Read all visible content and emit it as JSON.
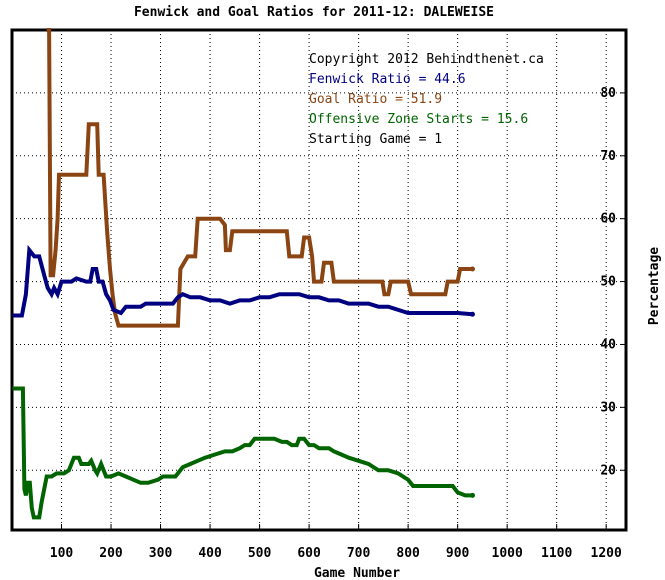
{
  "chart_data": {
    "type": "line",
    "title": "Fenwick and Goal Ratios for 2011-12: DALEWEISE",
    "xlabel": "Game Number",
    "ylabel": "Percentage",
    "xlim": [
      0,
      1240
    ],
    "ylim": [
      10.5,
      90
    ],
    "x_ticks": [
      100,
      200,
      300,
      400,
      500,
      600,
      700,
      800,
      900,
      1000,
      1100,
      1200
    ],
    "y_ticks": [
      20,
      30,
      40,
      50,
      60,
      70,
      80
    ],
    "grid": true,
    "legend": [
      {
        "text": "Copyright 2012 Behindthenet.ca",
        "color": "#000000"
      },
      {
        "text": "Fenwick Ratio = 44.6",
        "color": "#000080"
      },
      {
        "text": "Goal Ratio = 51.9",
        "color": "#8B4513"
      },
      {
        "text": "Offensive Zone Starts = 15.6",
        "color": "#006400"
      },
      {
        "text": "Starting Game = 1",
        "color": "#000000"
      }
    ],
    "series": [
      {
        "color": "#000080",
        "points": [
          [
            1,
            44.6
          ],
          [
            20,
            44.6
          ],
          [
            28,
            48
          ],
          [
            35,
            55
          ],
          [
            45,
            54
          ],
          [
            55,
            54
          ],
          [
            65,
            51
          ],
          [
            72,
            49
          ],
          [
            80,
            48
          ],
          [
            85,
            49
          ],
          [
            92,
            48
          ],
          [
            100,
            50
          ],
          [
            110,
            50
          ],
          [
            120,
            50
          ],
          [
            130,
            50.5
          ],
          [
            150,
            50
          ],
          [
            158,
            50
          ],
          [
            163,
            52
          ],
          [
            170,
            52
          ],
          [
            175,
            50
          ],
          [
            183,
            50
          ],
          [
            190,
            48
          ],
          [
            198,
            47
          ],
          [
            205,
            45.5
          ],
          [
            220,
            45
          ],
          [
            230,
            46
          ],
          [
            260,
            46
          ],
          [
            270,
            46.5
          ],
          [
            300,
            46.5
          ],
          [
            325,
            46.5
          ],
          [
            335,
            47.5
          ],
          [
            345,
            48
          ],
          [
            360,
            47.5
          ],
          [
            380,
            47.5
          ],
          [
            400,
            47
          ],
          [
            420,
            47
          ],
          [
            440,
            46.5
          ],
          [
            460,
            47
          ],
          [
            480,
            47
          ],
          [
            500,
            47.5
          ],
          [
            520,
            47.5
          ],
          [
            540,
            48
          ],
          [
            560,
            48
          ],
          [
            580,
            48
          ],
          [
            600,
            47.5
          ],
          [
            620,
            47.5
          ],
          [
            640,
            47
          ],
          [
            660,
            47
          ],
          [
            680,
            46.5
          ],
          [
            700,
            46.5
          ],
          [
            720,
            46.5
          ],
          [
            740,
            46
          ],
          [
            760,
            46
          ],
          [
            780,
            45.5
          ],
          [
            800,
            45
          ],
          [
            820,
            45
          ],
          [
            860,
            45
          ],
          [
            900,
            45
          ],
          [
            930,
            44.8
          ]
        ]
      },
      {
        "color": "#8B4513",
        "points": [
          [
            70,
            90
          ],
          [
            75,
            90
          ],
          [
            78,
            51
          ],
          [
            83,
            51
          ],
          [
            88,
            55
          ],
          [
            92,
            60
          ],
          [
            95,
            67
          ],
          [
            102,
            67
          ],
          [
            110,
            67
          ],
          [
            135,
            67
          ],
          [
            145,
            67
          ],
          [
            150,
            67
          ],
          [
            155,
            75
          ],
          [
            172,
            75
          ],
          [
            175,
            67
          ],
          [
            185,
            67
          ],
          [
            192,
            58
          ],
          [
            198,
            52
          ],
          [
            203,
            48
          ],
          [
            208,
            45
          ],
          [
            215,
            43
          ],
          [
            230,
            43
          ],
          [
            260,
            43
          ],
          [
            300,
            43
          ],
          [
            335,
            43
          ],
          [
            340,
            52
          ],
          [
            355,
            54
          ],
          [
            370,
            54
          ],
          [
            375,
            60
          ],
          [
            385,
            60
          ],
          [
            420,
            60
          ],
          [
            430,
            59
          ],
          [
            432,
            55
          ],
          [
            440,
            55
          ],
          [
            445,
            58
          ],
          [
            490,
            58
          ],
          [
            540,
            58
          ],
          [
            555,
            58
          ],
          [
            560,
            54
          ],
          [
            565,
            54
          ],
          [
            585,
            54
          ],
          [
            590,
            57
          ],
          [
            600,
            57
          ],
          [
            606,
            54
          ],
          [
            610,
            50
          ],
          [
            615,
            50
          ],
          [
            625,
            50
          ],
          [
            630,
            53
          ],
          [
            645,
            53
          ],
          [
            650,
            50
          ],
          [
            680,
            50
          ],
          [
            720,
            50
          ],
          [
            748,
            50
          ],
          [
            752,
            48
          ],
          [
            760,
            48
          ],
          [
            765,
            50
          ],
          [
            780,
            50
          ],
          [
            800,
            50
          ],
          [
            806,
            48
          ],
          [
            850,
            48
          ],
          [
            875,
            48
          ],
          [
            880,
            50
          ],
          [
            900,
            50
          ],
          [
            905,
            52
          ],
          [
            930,
            52
          ]
        ]
      },
      {
        "color": "#006400",
        "points": [
          [
            1,
            33
          ],
          [
            22,
            33
          ],
          [
            25,
            17
          ],
          [
            28,
            16
          ],
          [
            32,
            18
          ],
          [
            36,
            18
          ],
          [
            40,
            14
          ],
          [
            44,
            12.5
          ],
          [
            55,
            12.5
          ],
          [
            60,
            15
          ],
          [
            65,
            17
          ],
          [
            70,
            19
          ],
          [
            80,
            19
          ],
          [
            90,
            19.5
          ],
          [
            105,
            19.5
          ],
          [
            115,
            20
          ],
          [
            125,
            22
          ],
          [
            135,
            22
          ],
          [
            140,
            21
          ],
          [
            155,
            21
          ],
          [
            160,
            21.5
          ],
          [
            168,
            20
          ],
          [
            172,
            19.5
          ],
          [
            180,
            21
          ],
          [
            185,
            20
          ],
          [
            190,
            19
          ],
          [
            200,
            19
          ],
          [
            215,
            19.5
          ],
          [
            230,
            19
          ],
          [
            245,
            18.5
          ],
          [
            260,
            18
          ],
          [
            275,
            18
          ],
          [
            295,
            18.5
          ],
          [
            305,
            19
          ],
          [
            320,
            19
          ],
          [
            330,
            19
          ],
          [
            335,
            19.5
          ],
          [
            345,
            20.5
          ],
          [
            360,
            21
          ],
          [
            375,
            21.5
          ],
          [
            390,
            22
          ],
          [
            410,
            22.5
          ],
          [
            430,
            23
          ],
          [
            445,
            23
          ],
          [
            460,
            23.5
          ],
          [
            470,
            24
          ],
          [
            480,
            24
          ],
          [
            490,
            25
          ],
          [
            510,
            25
          ],
          [
            530,
            25
          ],
          [
            545,
            24.5
          ],
          [
            555,
            24.5
          ],
          [
            565,
            24
          ],
          [
            575,
            24
          ],
          [
            580,
            25
          ],
          [
            590,
            25
          ],
          [
            600,
            24
          ],
          [
            610,
            24
          ],
          [
            620,
            23.5
          ],
          [
            640,
            23.5
          ],
          [
            650,
            23
          ],
          [
            665,
            22.5
          ],
          [
            680,
            22
          ],
          [
            700,
            21.5
          ],
          [
            720,
            21
          ],
          [
            740,
            20
          ],
          [
            760,
            20
          ],
          [
            780,
            19.5
          ],
          [
            800,
            18.5
          ],
          [
            810,
            17.5
          ],
          [
            830,
            17.5
          ],
          [
            860,
            17.5
          ],
          [
            890,
            17.5
          ],
          [
            900,
            16.5
          ],
          [
            915,
            16
          ],
          [
            930,
            16
          ]
        ]
      }
    ]
  }
}
